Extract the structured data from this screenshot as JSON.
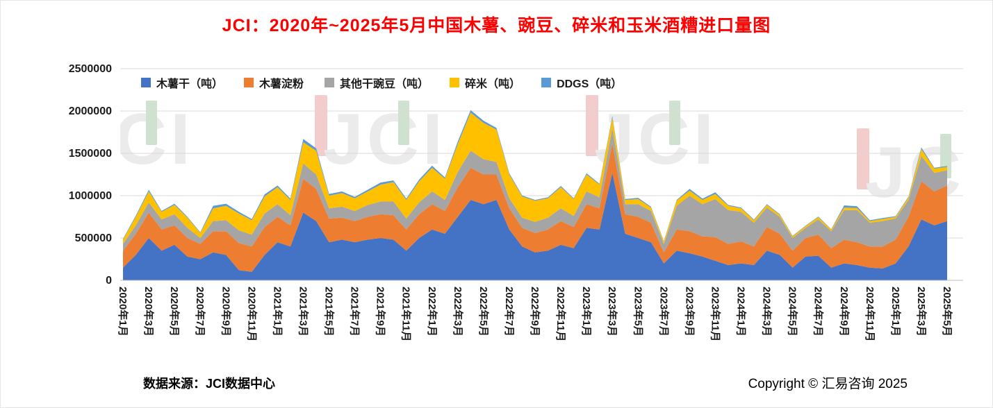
{
  "title": "JCI：2020年~2025年5月中国木薯、豌豆、碎米和玉米酒糟进口量图",
  "watermark_text": "JCI",
  "footer": {
    "source": "数据来源：JCI数据中心",
    "copyright": "Copyright © 汇易咨询 2025"
  },
  "chart_data": {
    "type": "area",
    "stacked": true,
    "title": "JCI：2020年~2025年5月中国木薯、豌豆、碎米和玉米酒糟进口量图",
    "xlabel": "",
    "ylabel": "",
    "ylim": [
      0,
      2500000
    ],
    "y_ticks": [
      0,
      500000,
      1000000,
      1500000,
      2000000,
      2500000
    ],
    "grid": true,
    "legend_position": "top-left-inside",
    "x_tick_every": 2,
    "x": [
      "2020年1月",
      "2020年2月",
      "2020年3月",
      "2020年4月",
      "2020年5月",
      "2020年6月",
      "2020年7月",
      "2020年8月",
      "2020年9月",
      "2020年10月",
      "2020年11月",
      "2020年12月",
      "2021年1月",
      "2021年2月",
      "2021年3月",
      "2021年4月",
      "2021年5月",
      "2021年6月",
      "2021年7月",
      "2021年8月",
      "2021年9月",
      "2021年10月",
      "2021年11月",
      "2021年12月",
      "2022年1月",
      "2022年2月",
      "2022年3月",
      "2022年4月",
      "2022年5月",
      "2022年6月",
      "2022年7月",
      "2022年8月",
      "2022年9月",
      "2022年10月",
      "2022年11月",
      "2022年12月",
      "2023年1月",
      "2023年2月",
      "2023年3月",
      "2023年4月",
      "2023年5月",
      "2023年6月",
      "2023年7月",
      "2023年8月",
      "2023年9月",
      "2023年10月",
      "2023年11月",
      "2023年12月",
      "2024年1月",
      "2024年2月",
      "2024年3月",
      "2024年4月",
      "2024年5月",
      "2024年6月",
      "2024年7月",
      "2024年8月",
      "2024年9月",
      "2024年10月",
      "2024年11月",
      "2024年12月",
      "2025年1月",
      "2025年2月",
      "2025年3月",
      "2025年4月",
      "2025年5月"
    ],
    "series": [
      {
        "name": "木薯干（吨）",
        "color": "#4472C4",
        "values": [
          150000,
          300000,
          500000,
          350000,
          420000,
          280000,
          250000,
          330000,
          300000,
          120000,
          100000,
          300000,
          450000,
          400000,
          800000,
          700000,
          450000,
          480000,
          450000,
          480000,
          500000,
          480000,
          350000,
          500000,
          600000,
          550000,
          750000,
          950000,
          900000,
          950000,
          600000,
          400000,
          330000,
          350000,
          420000,
          380000,
          620000,
          600000,
          1270000,
          550000,
          500000,
          450000,
          200000,
          350000,
          320000,
          280000,
          230000,
          180000,
          200000,
          180000,
          350000,
          300000,
          150000,
          280000,
          290000,
          150000,
          200000,
          180000,
          150000,
          140000,
          200000,
          400000,
          720000,
          650000,
          700000
        ]
      },
      {
        "name": "木薯淀粉",
        "color": "#ED7D31",
        "values": [
          200000,
          250000,
          300000,
          250000,
          230000,
          220000,
          180000,
          250000,
          280000,
          320000,
          300000,
          330000,
          300000,
          250000,
          400000,
          380000,
          280000,
          260000,
          250000,
          270000,
          280000,
          290000,
          250000,
          280000,
          300000,
          270000,
          350000,
          380000,
          350000,
          300000,
          250000,
          220000,
          230000,
          250000,
          280000,
          250000,
          280000,
          250000,
          350000,
          230000,
          250000,
          230000,
          130000,
          250000,
          260000,
          240000,
          280000,
          250000,
          260000,
          220000,
          280000,
          250000,
          200000,
          220000,
          250000,
          230000,
          280000,
          270000,
          250000,
          260000,
          280000,
          350000,
          450000,
          400000,
          420000
        ]
      },
      {
        "name": "其他干豌豆（吨）",
        "color": "#A5A5A5",
        "values": [
          80000,
          100000,
          120000,
          120000,
          130000,
          120000,
          70000,
          120000,
          130000,
          150000,
          140000,
          160000,
          150000,
          120000,
          180000,
          170000,
          120000,
          130000,
          120000,
          140000,
          150000,
          160000,
          130000,
          140000,
          150000,
          130000,
          180000,
          200000,
          180000,
          150000,
          120000,
          120000,
          130000,
          140000,
          150000,
          130000,
          150000,
          130000,
          180000,
          120000,
          150000,
          140000,
          100000,
          280000,
          420000,
          380000,
          450000,
          400000,
          350000,
          280000,
          230000,
          200000,
          150000,
          120000,
          180000,
          200000,
          350000,
          380000,
          280000,
          300000,
          250000,
          200000,
          300000,
          220000,
          180000
        ]
      },
      {
        "name": "碎米（吨）",
        "color": "#FFC000",
        "values": [
          50000,
          100000,
          130000,
          90000,
          110000,
          120000,
          60000,
          150000,
          170000,
          200000,
          170000,
          200000,
          200000,
          180000,
          250000,
          280000,
          150000,
          160000,
          150000,
          160000,
          200000,
          230000,
          220000,
          250000,
          280000,
          250000,
          330000,
          450000,
          430000,
          380000,
          280000,
          250000,
          250000,
          230000,
          250000,
          200000,
          200000,
          150000,
          120000,
          50000,
          60000,
          40000,
          30000,
          60000,
          60000,
          50000,
          60000,
          50000,
          40000,
          30000,
          30000,
          25000,
          20000,
          20000,
          25000,
          20000,
          30000,
          25000,
          20000,
          25000,
          20000,
          30000,
          80000,
          50000,
          40000
        ]
      },
      {
        "name": "DDGS（吨）",
        "color": "#5B9BD5",
        "values": [
          10000,
          15000,
          20000,
          10000,
          15000,
          10000,
          8000,
          30000,
          25000,
          20000,
          15000,
          25000,
          20000,
          15000,
          40000,
          30000,
          20000,
          20000,
          15000,
          20000,
          25000,
          20000,
          15000,
          20000,
          25000,
          15000,
          30000,
          30000,
          25000,
          20000,
          15000,
          12000,
          10000,
          10000,
          15000,
          10000,
          15000,
          10000,
          20000,
          10000,
          15000,
          10000,
          5000,
          10000,
          20000,
          15000,
          20000,
          10000,
          10000,
          8000,
          10000,
          8000,
          5000,
          5000,
          8000,
          5000,
          25000,
          20000,
          10000,
          10000,
          8000,
          10000,
          20000,
          10000,
          10000
        ]
      }
    ]
  }
}
